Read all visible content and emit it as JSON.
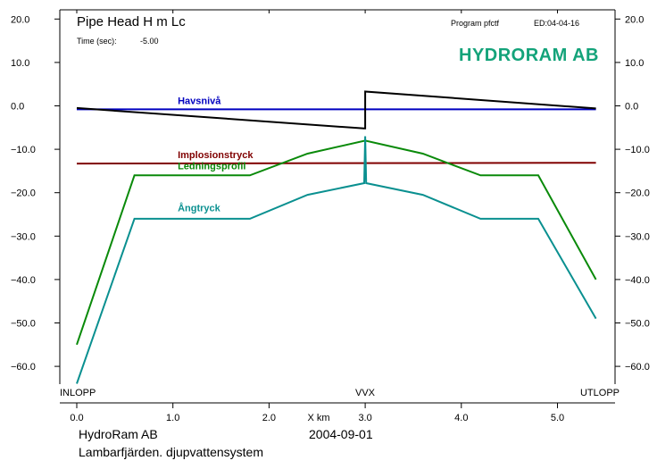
{
  "header": {
    "title": "Pipe Head    H  m Lc",
    "time_label": "Time (sec):",
    "time_value": "-5.00",
    "program": "Program  pfctf",
    "edition": "ED:04-04-16",
    "logo": "HYDRORAM AB"
  },
  "footer": {
    "company": "HydroRam AB",
    "date": "2004-09-01",
    "project": "Lambarfjärden. djupvattensystem"
  },
  "colors": {
    "havsniva": "#0000c0",
    "implosionstryck": "#800000",
    "ledningsprofil": "#0a8a0a",
    "angtryck": "#0a9090",
    "head": "#000000",
    "logo": "#14a37a"
  },
  "chart_data": {
    "type": "line",
    "xlabel": "X km",
    "ylabel": "",
    "xlim": [
      0.0,
      5.4
    ],
    "ylim": [
      -65.0,
      22.0
    ],
    "x_ticks": [
      "0.0",
      "1.0",
      "2.0",
      "3.0",
      "4.0",
      "5.0"
    ],
    "x_tick_values": [
      0,
      1,
      2,
      3,
      4,
      5
    ],
    "y_ticks": [
      "20.0",
      "10.0",
      "0.0",
      "−10.0",
      "−20.0",
      "−30.0",
      "−40.0",
      "−50.0",
      "−60.0"
    ],
    "y_tick_values": [
      20,
      10,
      0,
      -10,
      -20,
      -30,
      -40,
      -50,
      -60
    ],
    "location_labels": [
      {
        "text": "INLOPP",
        "x": 0.0
      },
      {
        "text": "VVX",
        "x": 3.0
      },
      {
        "text": "UTLOPP",
        "x": 5.4
      }
    ],
    "series": [
      {
        "name": "Havsnivå",
        "label_x": 1.05,
        "label_y": 0.4,
        "x": [
          0.0,
          5.4
        ],
        "y": [
          -0.8,
          -0.8
        ]
      },
      {
        "name": "Implosionstryck",
        "label_x": 1.05,
        "label_y": -12.0,
        "x": [
          0.0,
          5.4
        ],
        "y": [
          -13.3,
          -13.1
        ]
      },
      {
        "name": "Ledningsprofil",
        "label_x": 1.05,
        "label_y": -14.6,
        "x": [
          0.0,
          0.6,
          1.8,
          2.4,
          3.0,
          3.6,
          4.2,
          4.8,
          5.4
        ],
        "y": [
          -55.0,
          -16.0,
          -16.0,
          -11.0,
          -8.0,
          -11.0,
          -16.0,
          -16.0,
          -40.0
        ]
      },
      {
        "name": "Ångtryck",
        "label_x": 1.05,
        "label_y": -24.3,
        "x": [
          0.0,
          0.6,
          1.8,
          2.4,
          2.99,
          3.0,
          3.01,
          3.6,
          4.2,
          4.8,
          5.4
        ],
        "y": [
          -64.0,
          -26.0,
          -26.0,
          -20.5,
          -17.8,
          -7.0,
          -17.8,
          -20.5,
          -26.0,
          -26.0,
          -49.0
        ]
      },
      {
        "name": "",
        "label_x": null,
        "label_y": null,
        "x": [
          0.0,
          2.99,
          3.0,
          3.0,
          5.4
        ],
        "y": [
          -0.5,
          -5.2,
          -5.2,
          3.3,
          -0.6
        ]
      }
    ]
  }
}
